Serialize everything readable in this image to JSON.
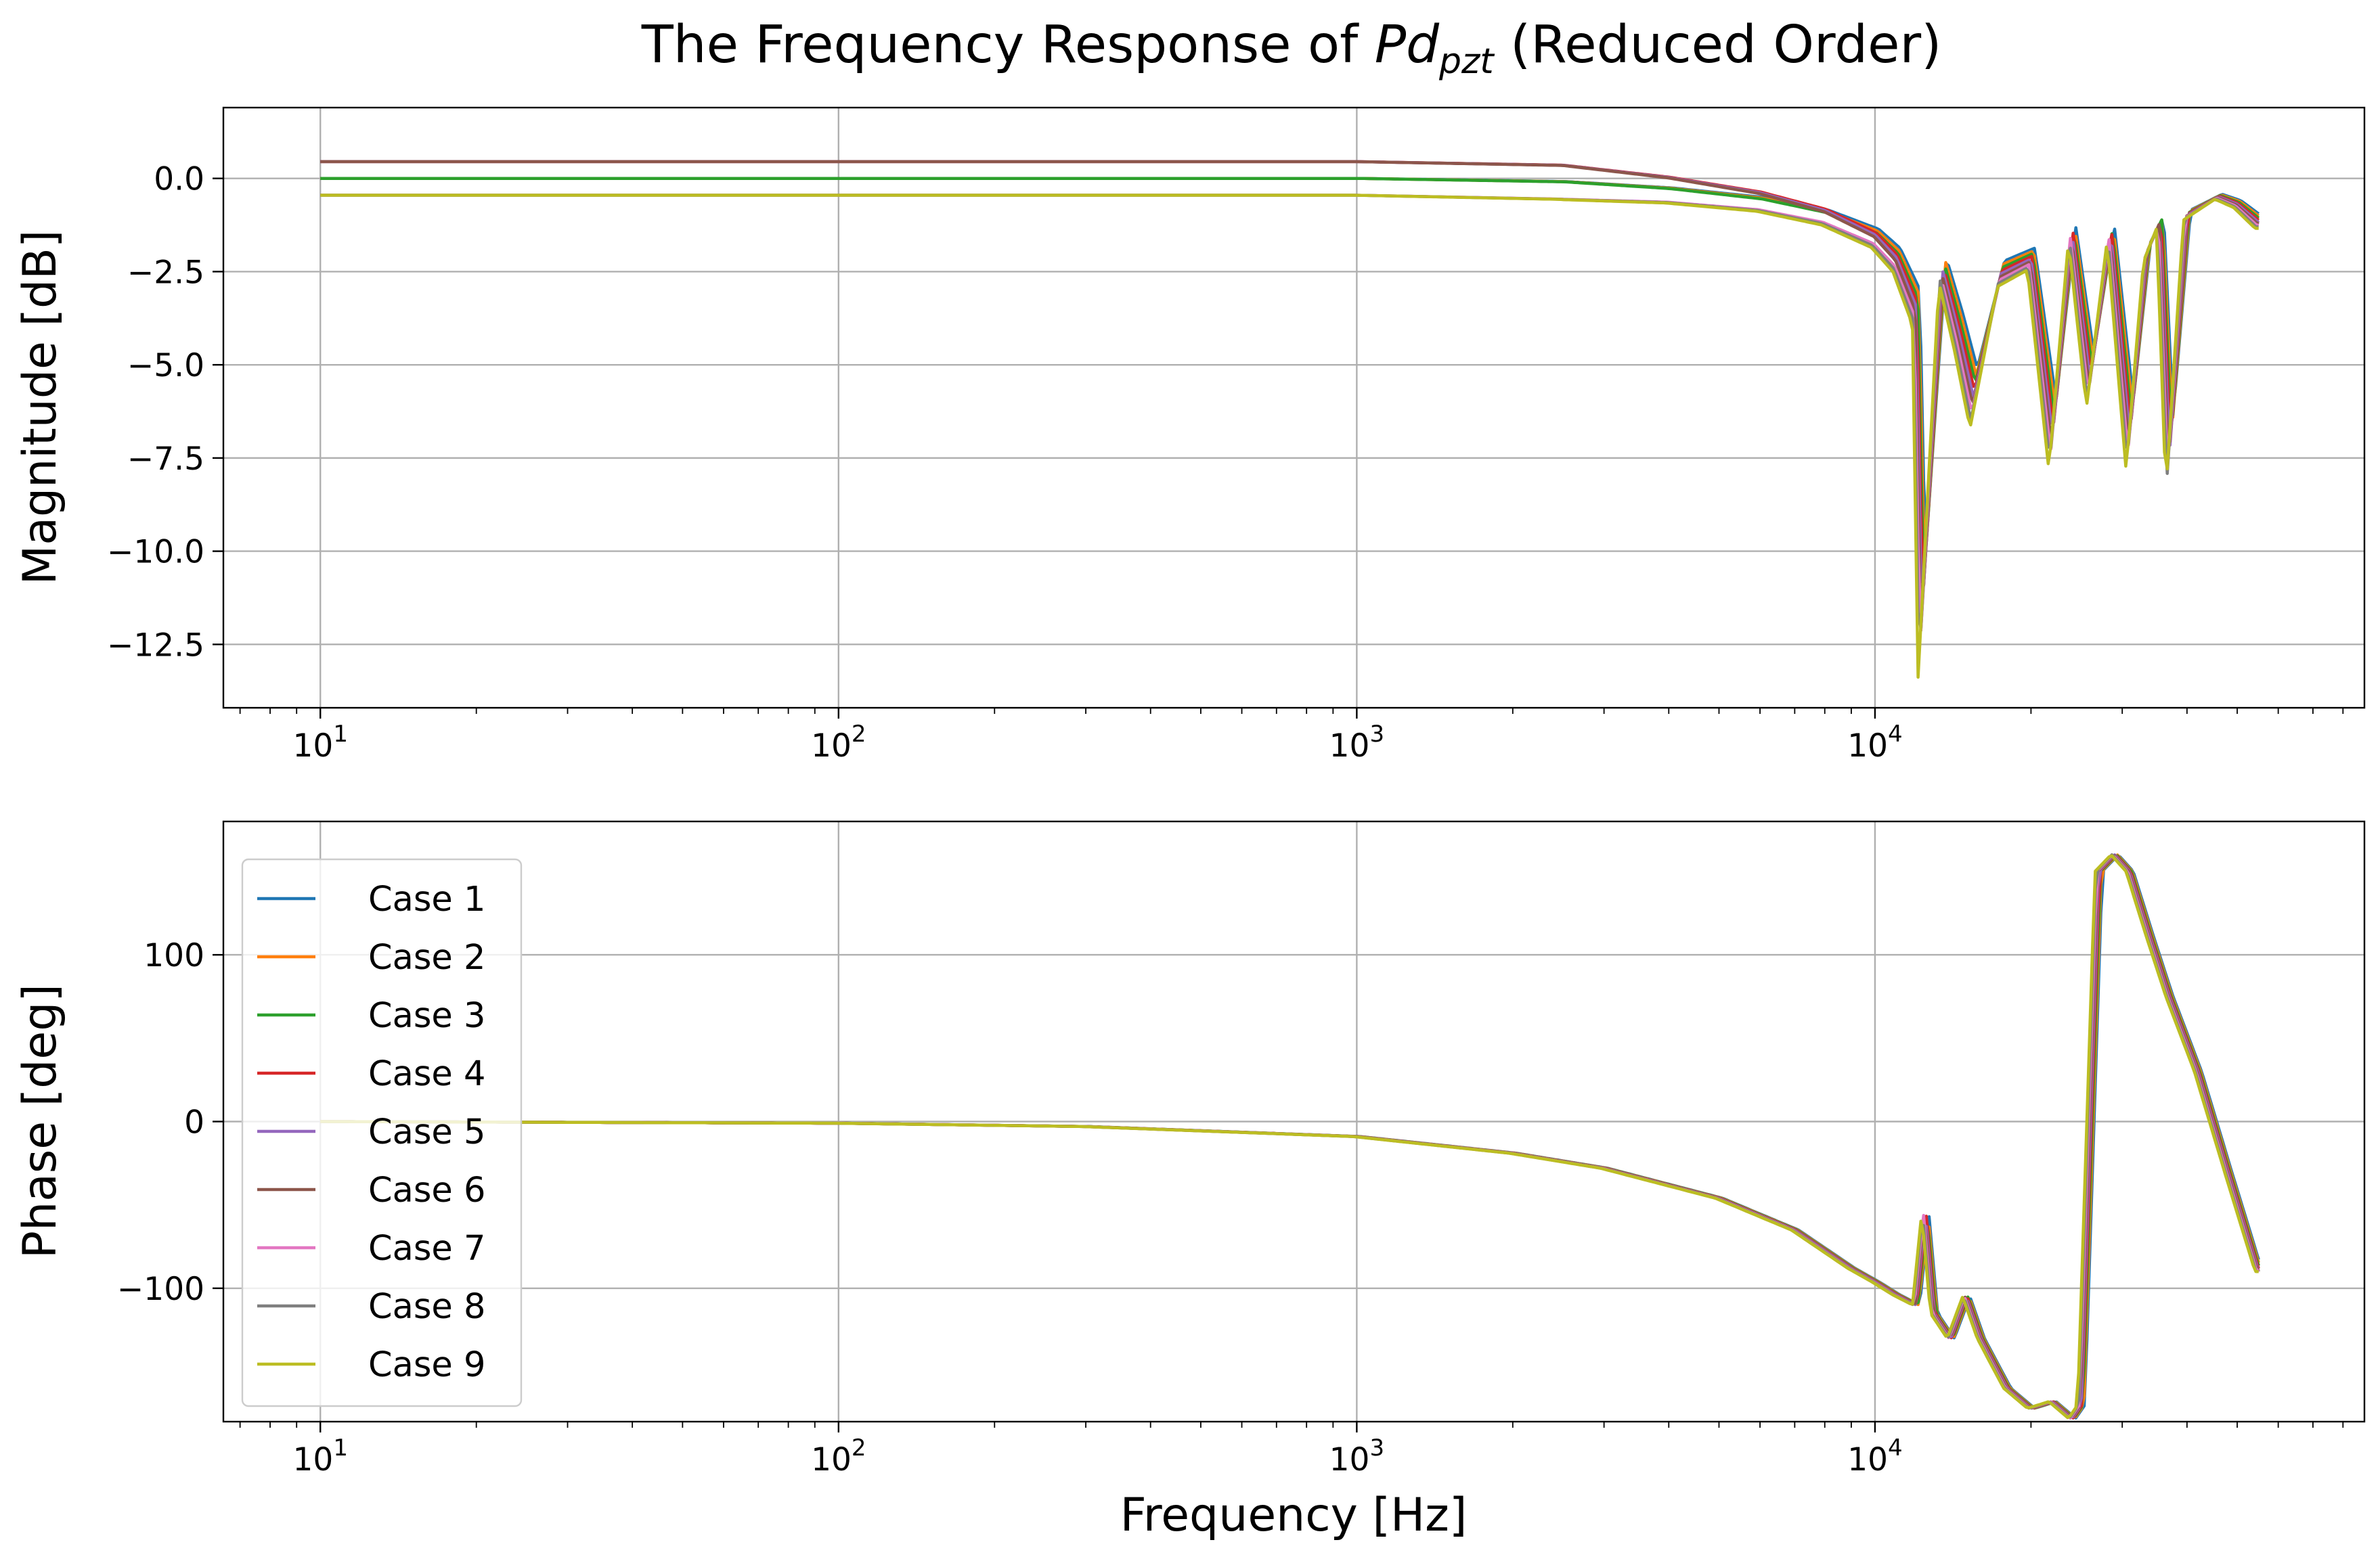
{
  "chart_data": {
    "title": {
      "prefix": "The Frequency Response of ",
      "symbol": "Pd",
      "subscript": "pzt",
      "suffix": " (Reduced Order)"
    },
    "xlabel": "Frequency [Hz]",
    "x_scale": "log",
    "xlim": [
      6.5,
      88000
    ],
    "x_tick_base": "10",
    "x_ticks": [
      {
        "value": 10,
        "exponent": "1"
      },
      {
        "value": 100,
        "exponent": "2"
      },
      {
        "value": 1000,
        "exponent": "3"
      },
      {
        "value": 10000,
        "exponent": "4"
      }
    ],
    "grid": true,
    "legend": {
      "location": "upper left",
      "panel": "phase"
    },
    "series": [
      {
        "name": "Case 1",
        "color": "#1f77b4",
        "mag_dc": 0.0
      },
      {
        "name": "Case 2",
        "color": "#ff7f0e",
        "mag_dc": 0.0
      },
      {
        "name": "Case 3",
        "color": "#2ca02c",
        "mag_dc": 0.0
      },
      {
        "name": "Case 4",
        "color": "#d62728",
        "mag_dc": 0.45
      },
      {
        "name": "Case 5",
        "color": "#9467bd",
        "mag_dc": 0.45
      },
      {
        "name": "Case 6",
        "color": "#8c564b",
        "mag_dc": 0.45
      },
      {
        "name": "Case 7",
        "color": "#e377c2",
        "mag_dc": -0.45
      },
      {
        "name": "Case 8",
        "color": "#7f7f7f",
        "mag_dc": -0.45
      },
      {
        "name": "Case 9",
        "color": "#bcbd22",
        "mag_dc": -0.45
      }
    ],
    "panels": [
      {
        "type": "line",
        "ylabel": "Magnitude [dB]",
        "ylim": [
          -14.2,
          1.9
        ],
        "y_ticks": [
          {
            "value": 0,
            "label": "0.0"
          },
          {
            "value": -2.5,
            "label": "−2.5"
          },
          {
            "value": -5,
            "label": "−5.0"
          },
          {
            "value": -7.5,
            "label": "−7.5"
          },
          {
            "value": -10,
            "label": "−10.0"
          },
          {
            "value": -12.5,
            "label": "−12.5"
          }
        ],
        "trend": {
          "x": [
            10,
            1000,
            2500,
            4000,
            6000,
            8000,
            10000,
            11000,
            12000,
            12300,
            13500,
            14500,
            15500,
            17500,
            20000,
            22000,
            24000,
            26000,
            28500,
            31000,
            33500,
            35500,
            37000,
            40000,
            46000,
            50000,
            55000
          ],
          "y": [
            0.0,
            0.0,
            -0.1,
            -0.3,
            -0.6,
            -1.0,
            -1.6,
            -2.2,
            -3.5,
            -12.0,
            -2.5,
            -4.2,
            -6.0,
            -2.6,
            -2.2,
            -7.0,
            -1.5,
            -5.5,
            -1.5,
            -7.0,
            -2.0,
            -1.2,
            -7.5,
            -1.0,
            -0.5,
            -0.7,
            -1.2
          ]
        }
      },
      {
        "type": "line",
        "ylabel": "Phase [deg]",
        "ylim": [
          -180,
          180
        ],
        "y_ticks": [
          {
            "value": 100,
            "label": "100"
          },
          {
            "value": 0,
            "label": "0"
          },
          {
            "value": -100,
            "label": "−100"
          }
        ],
        "trend": {
          "x": [
            10,
            100,
            300,
            1000,
            2000,
            3000,
            5000,
            7000,
            9000,
            10000,
            11000,
            12000,
            12500,
            13000,
            14000,
            15000,
            16000,
            18000,
            20000,
            22000,
            24000,
            25000,
            27000,
            29000,
            31000,
            34000,
            37000,
            42000,
            48000,
            55000
          ],
          "y": [
            0,
            -1,
            -3,
            -9,
            -19,
            -28,
            -46,
            -65,
            -88,
            -96,
            -104,
            -110,
            -55,
            -115,
            -130,
            -105,
            -130,
            -160,
            -172,
            -168,
            -178,
            -170,
            150,
            160,
            150,
            110,
            75,
            30,
            -30,
            -90
          ]
        }
      }
    ]
  }
}
